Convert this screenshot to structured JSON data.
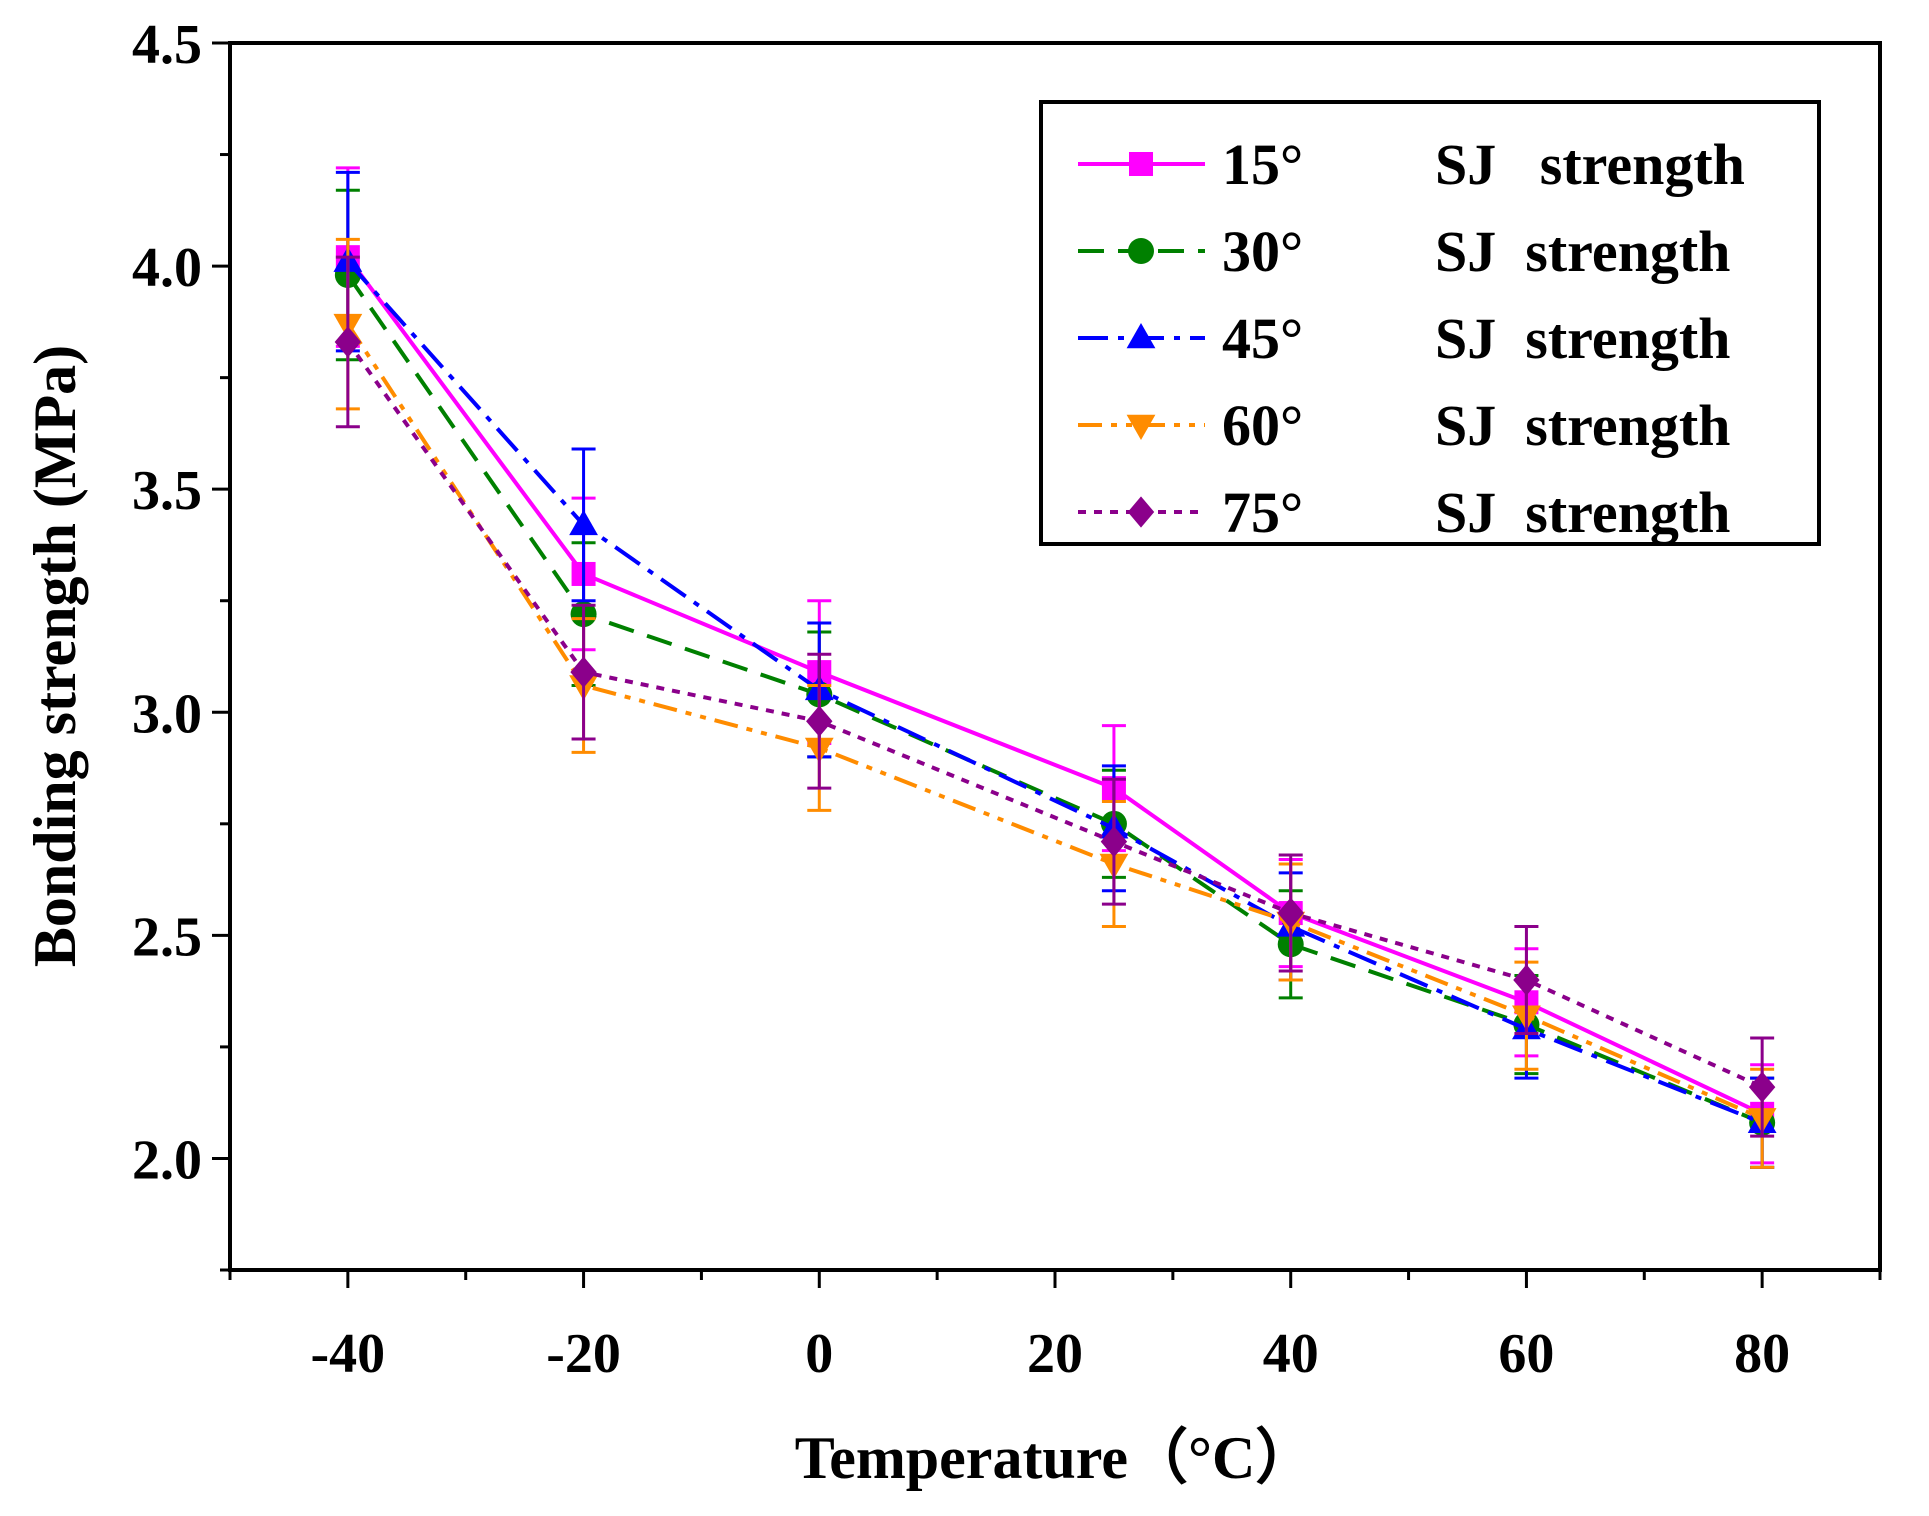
{
  "chart_data": {
    "type": "line",
    "title": "",
    "xlabel": "Temperature（°C）",
    "ylabel": "Bonding strength (MPa)",
    "xlim": [
      -50,
      90
    ],
    "ylim": [
      1.75,
      4.5
    ],
    "x_ticks": [
      -40,
      -20,
      0,
      20,
      40,
      60,
      80
    ],
    "x_tick_labels": [
      "-40",
      "-20",
      "0",
      "20",
      "40",
      "60",
      "80"
    ],
    "y_ticks": [
      2.0,
      2.5,
      3.0,
      3.5,
      4.0,
      4.5
    ],
    "y_tick_labels": [
      "2.0",
      "2.5",
      "3.0",
      "3.5",
      "4.0",
      "4.5"
    ],
    "legend_position": "top-right",
    "series": [
      {
        "name": "15°",
        "legend_suffix": "SJ   strength",
        "color": "#ff00ff",
        "marker": "square",
        "dash": "solid",
        "x": [
          -40,
          -20,
          0,
          25,
          40,
          60,
          80
        ],
        "values": [
          4.02,
          3.31,
          3.09,
          2.83,
          2.55,
          2.35,
          2.1
        ],
        "errors": [
          0.2,
          0.17,
          0.16,
          0.14,
          0.12,
          0.12,
          0.11
        ]
      },
      {
        "name": "30°",
        "legend_suffix": "SJ  strength",
        "color": "#008000",
        "marker": "circle",
        "dash": "dash",
        "x": [
          -40,
          -20,
          0,
          25,
          40,
          60,
          80
        ],
        "values": [
          3.98,
          3.22,
          3.04,
          2.75,
          2.48,
          2.3,
          2.08
        ],
        "errors": [
          0.19,
          0.16,
          0.14,
          0.12,
          0.12,
          0.11,
          0.1
        ]
      },
      {
        "name": "45°",
        "legend_suffix": "SJ  strength",
        "color": "#0000ff",
        "marker": "triangle-up",
        "dash": "dashdot",
        "x": [
          -40,
          -20,
          0,
          25,
          40,
          60,
          80
        ],
        "values": [
          4.01,
          3.42,
          3.05,
          2.74,
          2.52,
          2.29,
          2.08
        ],
        "errors": [
          0.2,
          0.17,
          0.15,
          0.14,
          0.12,
          0.11,
          0.1
        ]
      },
      {
        "name": "60°",
        "legend_suffix": "SJ  strength",
        "color": "#ff8c00",
        "marker": "triangle-down",
        "dash": "dashdotdot",
        "x": [
          -40,
          -20,
          0,
          25,
          40,
          60,
          80
        ],
        "values": [
          3.87,
          3.06,
          2.92,
          2.66,
          2.53,
          2.32,
          2.09
        ],
        "errors": [
          0.19,
          0.15,
          0.14,
          0.14,
          0.13,
          0.12,
          0.11
        ]
      },
      {
        "name": "75°",
        "legend_suffix": "SJ  strength",
        "color": "#8b008b",
        "marker": "diamond",
        "dash": "dot",
        "x": [
          -40,
          -20,
          0,
          25,
          40,
          60,
          80
        ],
        "values": [
          3.83,
          3.09,
          2.98,
          2.71,
          2.55,
          2.4,
          2.16
        ],
        "errors": [
          0.19,
          0.15,
          0.15,
          0.14,
          0.13,
          0.12,
          0.11
        ]
      }
    ]
  }
}
